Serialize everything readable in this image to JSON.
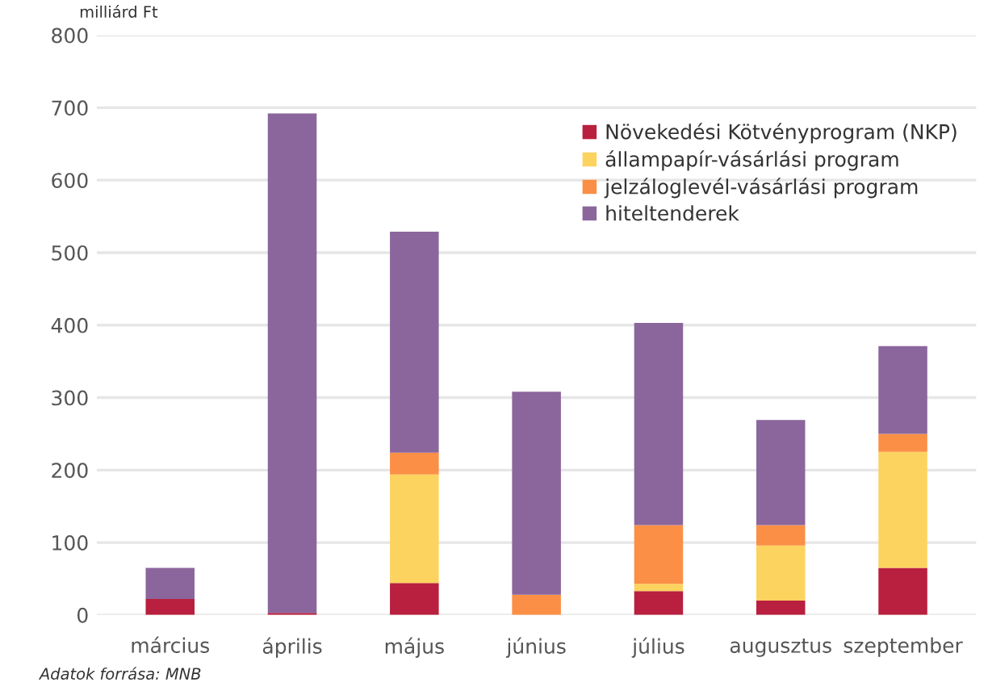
{
  "chart_data": {
    "type": "bar",
    "stacked": true,
    "ylabel": "milliárd Ft",
    "categories": [
      "március",
      "április",
      "május",
      "június",
      "július",
      "augusztus",
      "szeptember"
    ],
    "series": [
      {
        "name": "Növekedési Kötvényprogram (NKP)",
        "color": "#b91f3e",
        "values": [
          22,
          3,
          44,
          0,
          33,
          20,
          65
        ]
      },
      {
        "name": "állampapír-vásárlási program",
        "color": "#fdd35f",
        "values": [
          0,
          0,
          150,
          0,
          10,
          76,
          160
        ]
      },
      {
        "name": "jelzáloglevél-vásárlási program",
        "color": "#fb8f45",
        "values": [
          0,
          0,
          30,
          28,
          81,
          28,
          25
        ]
      },
      {
        "name": "hiteltenderek",
        "color": "#8b669c",
        "values": [
          43,
          689,
          305,
          280,
          279,
          145,
          121
        ]
      }
    ],
    "ylim": [
      0,
      800
    ],
    "yticks": [
      0,
      100,
      200,
      300,
      400,
      500,
      600,
      700,
      800
    ],
    "grid": "y",
    "legend": "top right",
    "annotations": [
      "Adatok forrása: MNB"
    ]
  }
}
